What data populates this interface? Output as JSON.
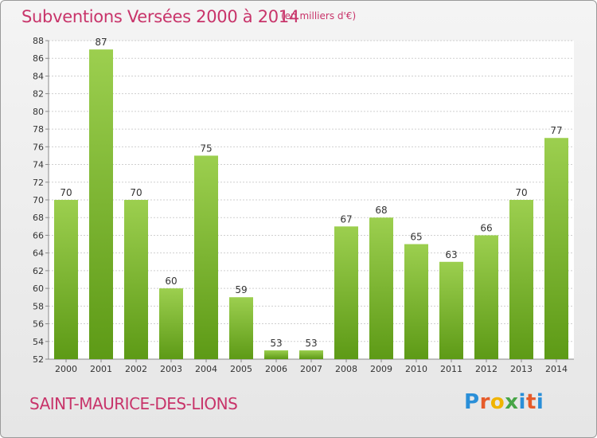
{
  "header": {
    "title": "Subventions Versées 2000 à 2014",
    "unit": "(en milliers d'€)"
  },
  "footer": {
    "city": "SAINT-MAURICE-DES-LIONS",
    "logo": "Proxiti"
  },
  "colors": {
    "accent": "#c8346a",
    "bar_top": "#9ccf4f",
    "bar_bottom": "#5d9a16"
  },
  "chart_data": {
    "type": "bar",
    "categories": [
      "2000",
      "2001",
      "2002",
      "2003",
      "2004",
      "2005",
      "2006",
      "2007",
      "2008",
      "2009",
      "2010",
      "2011",
      "2012",
      "2013",
      "2014"
    ],
    "values": [
      70,
      87,
      70,
      60,
      75,
      59,
      53,
      53,
      67,
      68,
      65,
      63,
      66,
      70,
      77
    ],
    "ylim": [
      52,
      88
    ],
    "yticks": [
      52,
      54,
      56,
      58,
      60,
      62,
      64,
      66,
      68,
      70,
      72,
      74,
      76,
      78,
      80,
      82,
      84,
      86,
      88
    ],
    "grid": true,
    "title": "Subventions Versées 2000 à 2014",
    "xlabel": "",
    "ylabel": ""
  }
}
